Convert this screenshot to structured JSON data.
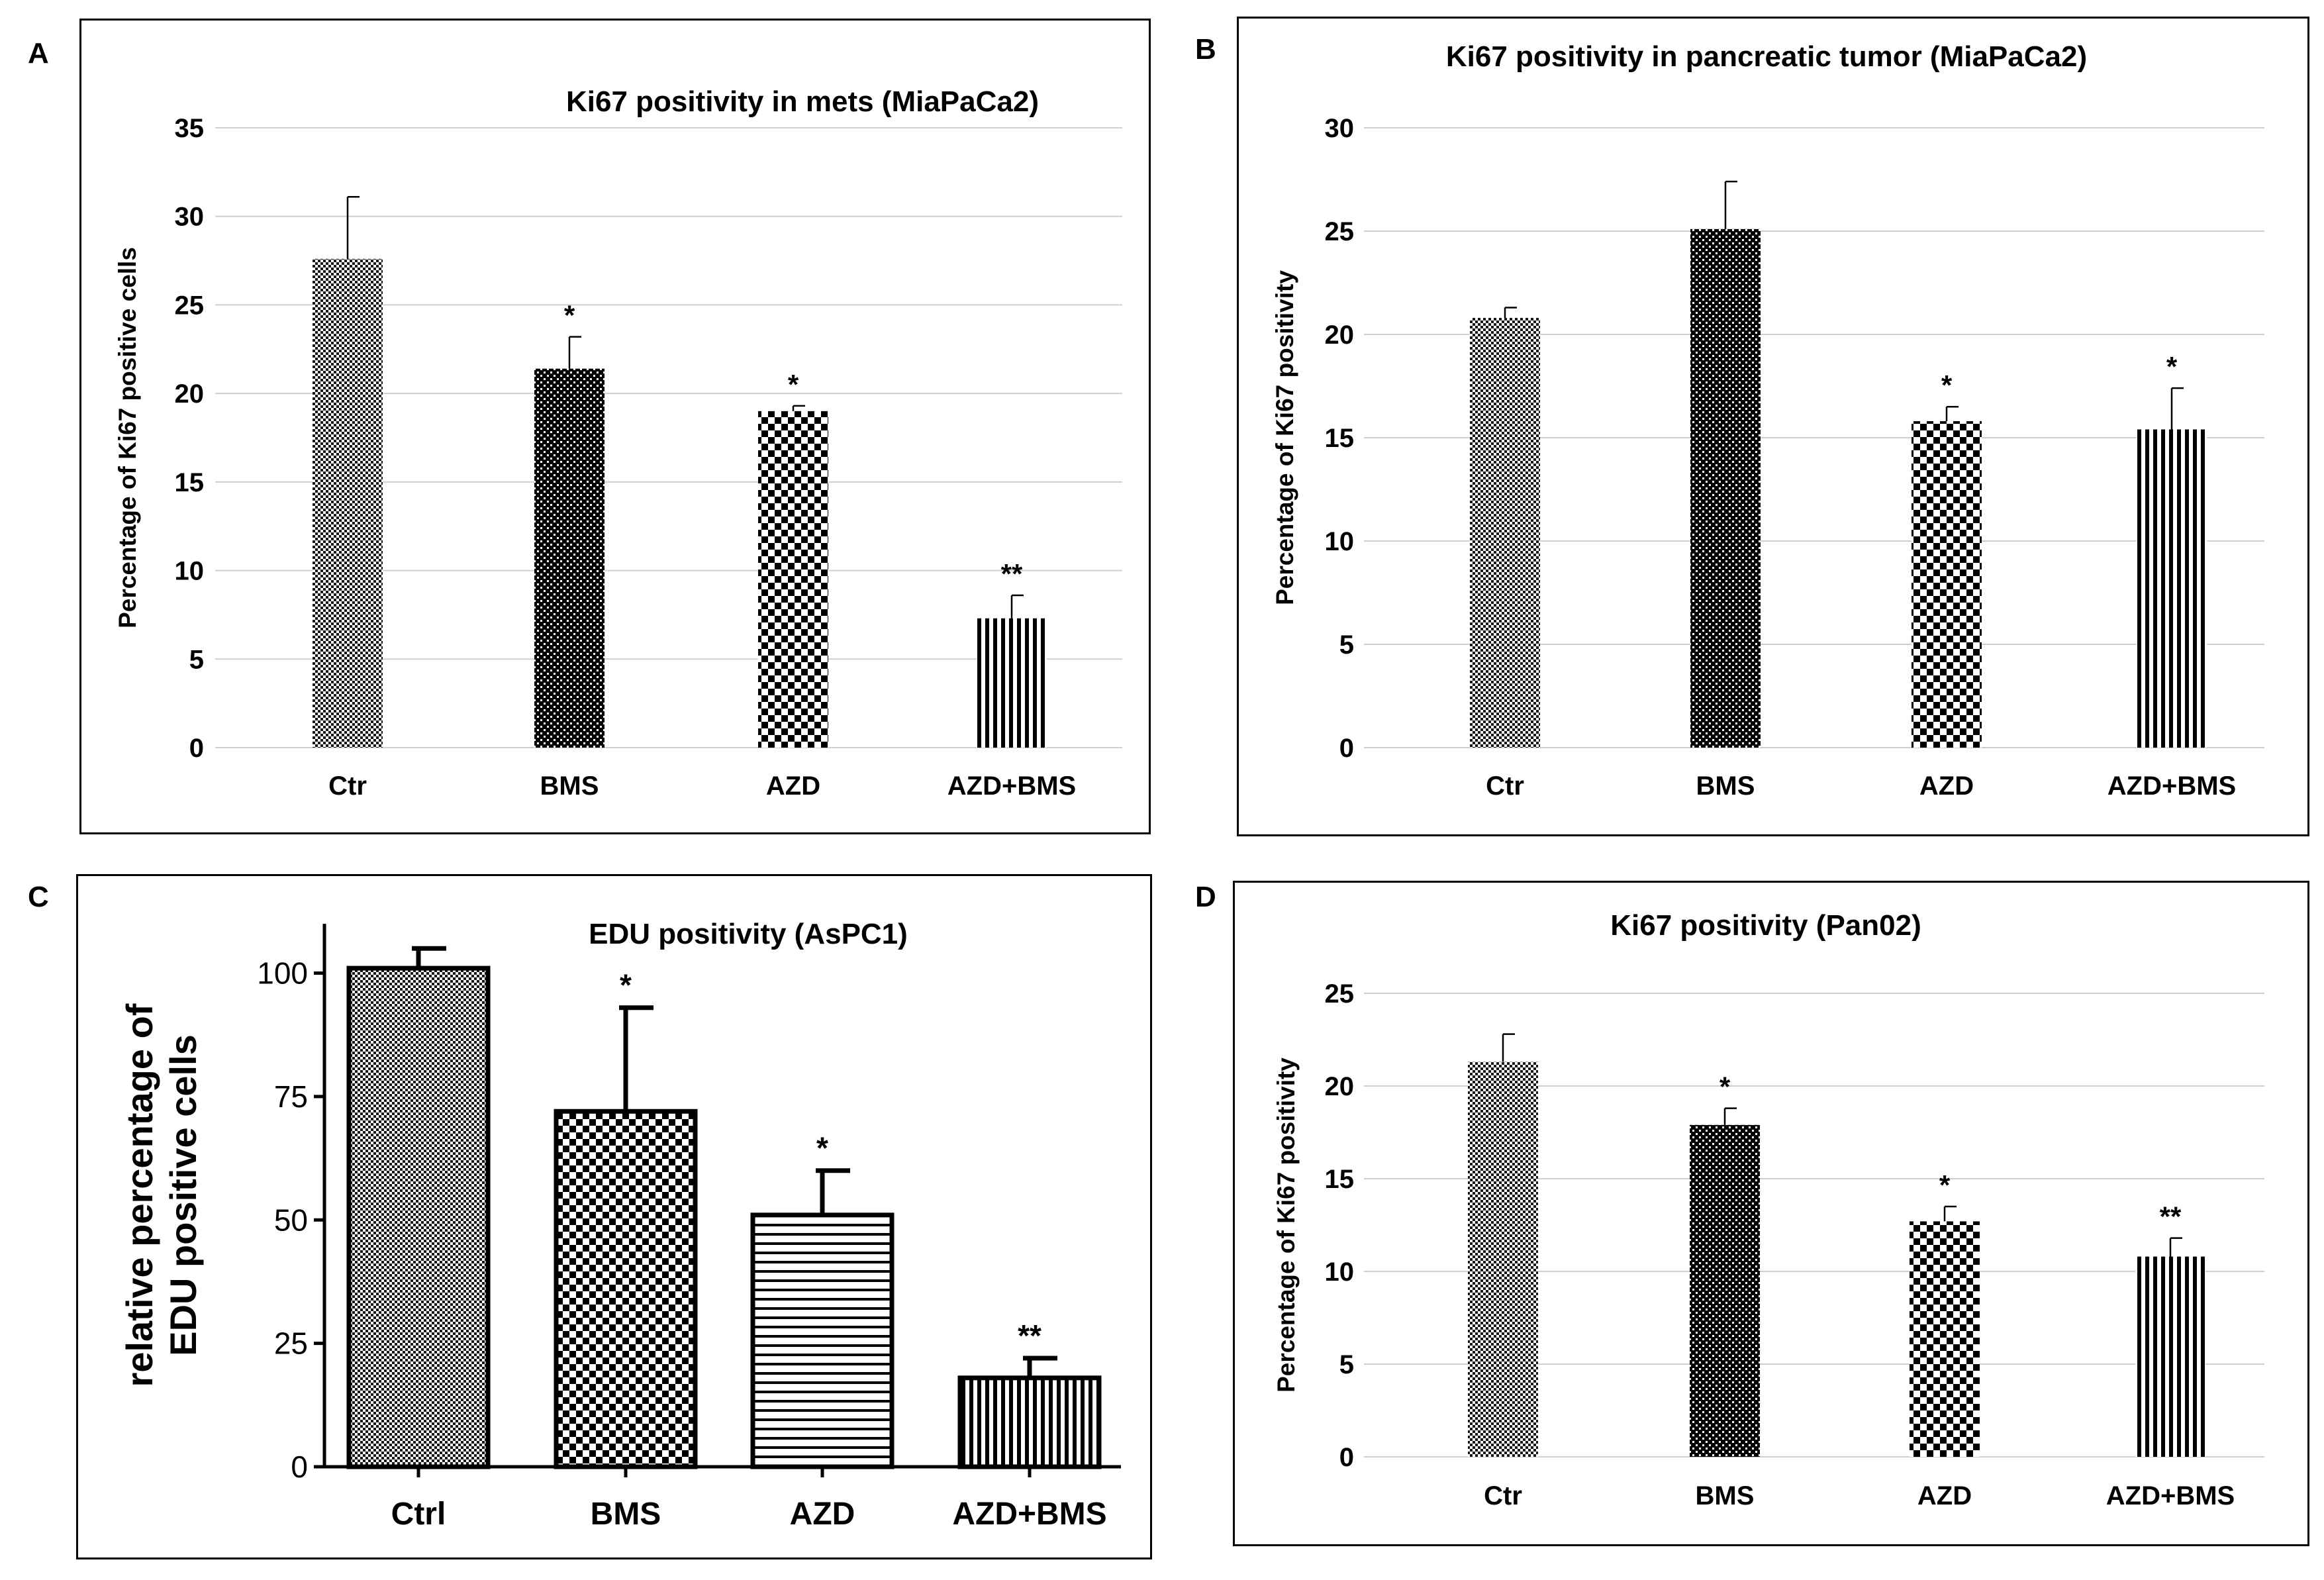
{
  "panels": [
    {
      "letter": "A",
      "chart_data": {
        "type": "bar",
        "title": "Ki67 positivity in mets (MiaPaCa2)",
        "xlabel": "",
        "ylabel": "Percentage of Ki67 positive cells",
        "ylim": [
          0,
          35
        ],
        "yticks": [
          0,
          5,
          10,
          15,
          20,
          25,
          30,
          35
        ],
        "grid": true,
        "categories": [
          "Ctr",
          "BMS",
          "AZD",
          "AZD+BMS"
        ],
        "values": [
          27.6,
          21.4,
          19.0,
          7.3
        ],
        "errors": [
          3.5,
          1.8,
          0.3,
          1.3
        ],
        "annotations": [
          "",
          "*",
          "*",
          "**"
        ],
        "patterns": [
          "fine",
          "dots",
          "checker",
          "vstripes"
        ]
      }
    },
    {
      "letter": "B",
      "chart_data": {
        "type": "bar",
        "title": "Ki67 positivity in pancreatic tumor (MiaPaCa2)",
        "xlabel": "",
        "ylabel": "Percentage of Ki67 positivity",
        "ylim": [
          0,
          30
        ],
        "yticks": [
          0,
          5,
          10,
          15,
          20,
          25,
          30
        ],
        "grid": true,
        "categories": [
          "Ctr",
          "BMS",
          "AZD",
          "AZD+BMS"
        ],
        "values": [
          20.8,
          25.1,
          15.8,
          15.4
        ],
        "errors": [
          0.5,
          2.3,
          0.7,
          2.0
        ],
        "annotations": [
          "",
          "",
          "*",
          "*"
        ],
        "patterns": [
          "fine",
          "dots",
          "checker",
          "vstripes"
        ]
      }
    },
    {
      "letter": "C",
      "chart_data": {
        "type": "bar",
        "title": "EDU positivity (AsPC1)",
        "xlabel": "",
        "ylabel": "relative percentage of EDU positive cells",
        "ylabel_lines": [
          "relative percentage of",
          "EDU positive cells"
        ],
        "ylim": [
          0,
          110
        ],
        "yticks": [
          0,
          25,
          50,
          75,
          100
        ],
        "grid": false,
        "categories": [
          "Ctrl",
          "BMS",
          "AZD",
          "AZD+BMS"
        ],
        "values": [
          101,
          72,
          51,
          18
        ],
        "errors": [
          4,
          21,
          9,
          4
        ],
        "annotations": [
          "",
          "*",
          "*",
          "**"
        ],
        "patterns": [
          "fine",
          "checker",
          "hstripes",
          "vstripes"
        ]
      }
    },
    {
      "letter": "D",
      "chart_data": {
        "type": "bar",
        "title": "Ki67 positivity (Pan02)",
        "xlabel": "",
        "ylabel": "Percentage of Ki67 positivity",
        "ylim": [
          0,
          25
        ],
        "yticks": [
          0,
          5,
          10,
          15,
          20,
          25
        ],
        "grid": true,
        "categories": [
          "Ctr",
          "BMS",
          "AZD",
          "AZD+BMS"
        ],
        "values": [
          21.3,
          17.9,
          12.7,
          10.8
        ],
        "errors": [
          1.5,
          0.9,
          0.8,
          1.0
        ],
        "annotations": [
          "",
          "*",
          "*",
          "**"
        ],
        "patterns": [
          "fine",
          "dots",
          "checker",
          "vstripes"
        ]
      }
    }
  ]
}
